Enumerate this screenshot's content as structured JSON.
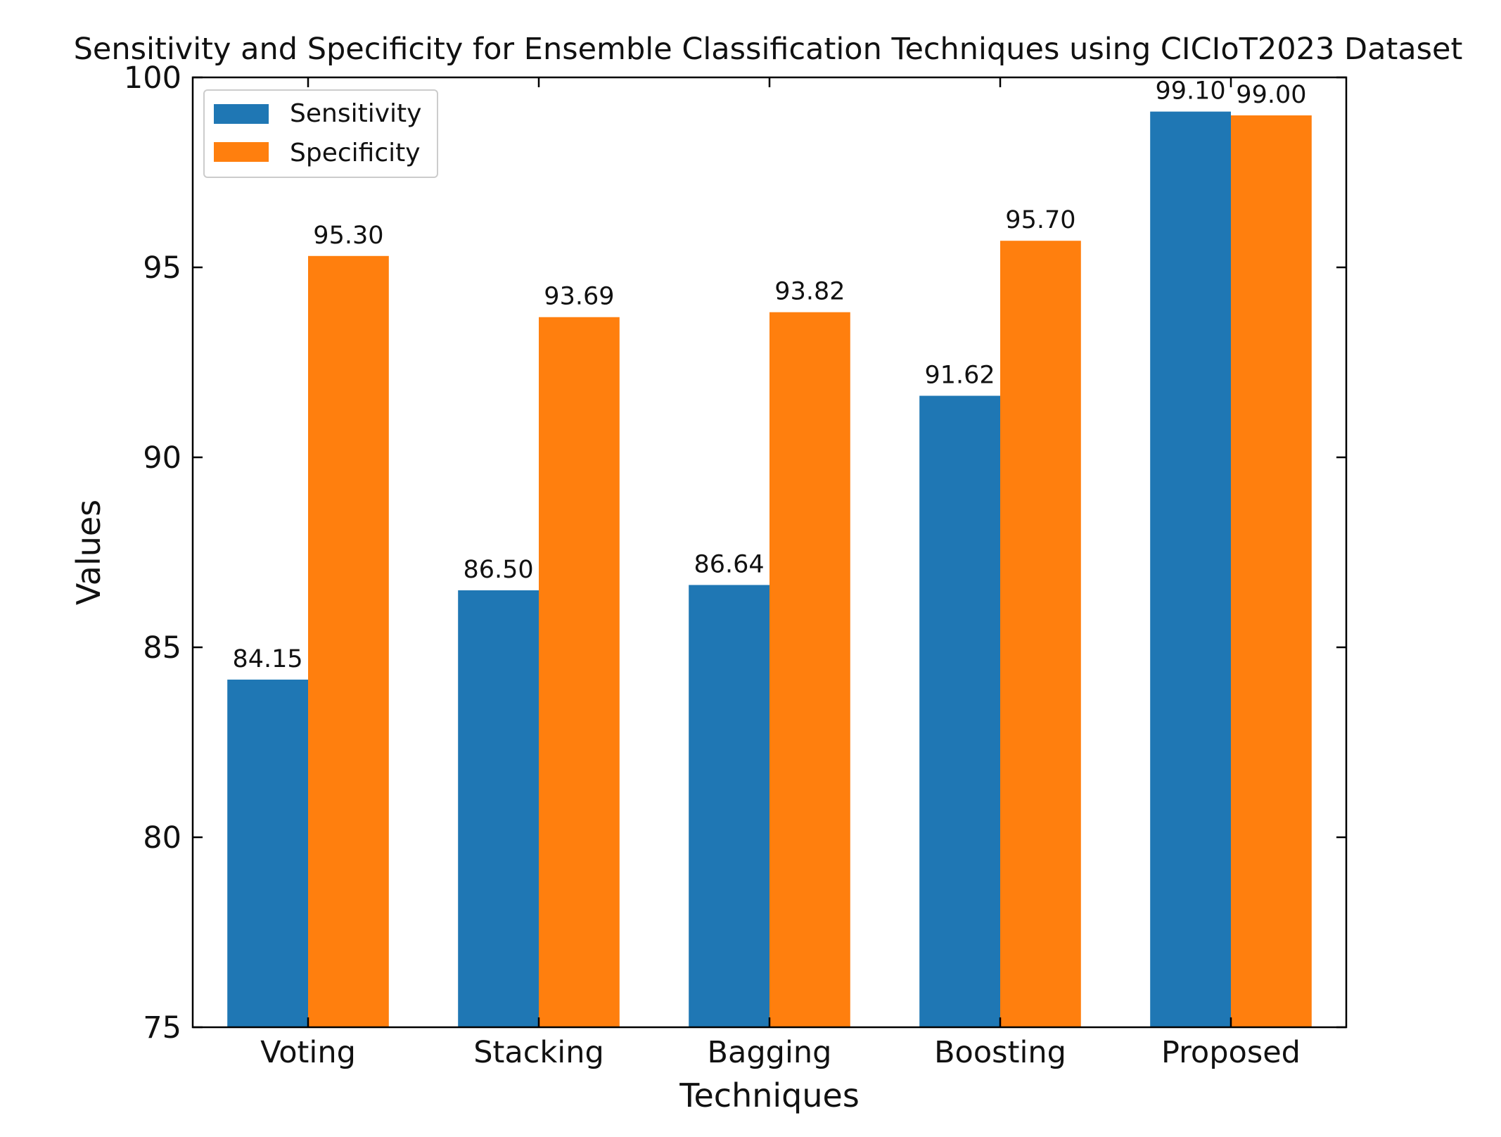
{
  "chart_data": {
    "type": "bar",
    "title": "Sensitivity and Specificity for Ensemble Classification Techniques using CICIoT2023 Dataset",
    "xlabel": "Techniques",
    "ylabel": "Values",
    "categories": [
      "Voting",
      "Stacking",
      "Bagging",
      "Boosting",
      "Proposed"
    ],
    "series": [
      {
        "name": "Sensitivity",
        "color": "#1f77b4",
        "values": [
          84.15,
          86.5,
          86.64,
          91.62,
          99.1
        ]
      },
      {
        "name": "Specificity",
        "color": "#ff7f0e",
        "values": [
          95.3,
          93.69,
          93.82,
          95.7,
          99.0
        ]
      }
    ],
    "ylim": [
      75,
      100
    ],
    "yticks": [
      75,
      80,
      85,
      90,
      95,
      100
    ],
    "data_labels": [
      [
        "84.15",
        "86.50",
        "86.64",
        "91.62",
        "99.10"
      ],
      [
        "95.30",
        "93.69",
        "93.82",
        "95.70",
        "99.00"
      ]
    ],
    "legend_position": "top-left",
    "grid": false
  }
}
